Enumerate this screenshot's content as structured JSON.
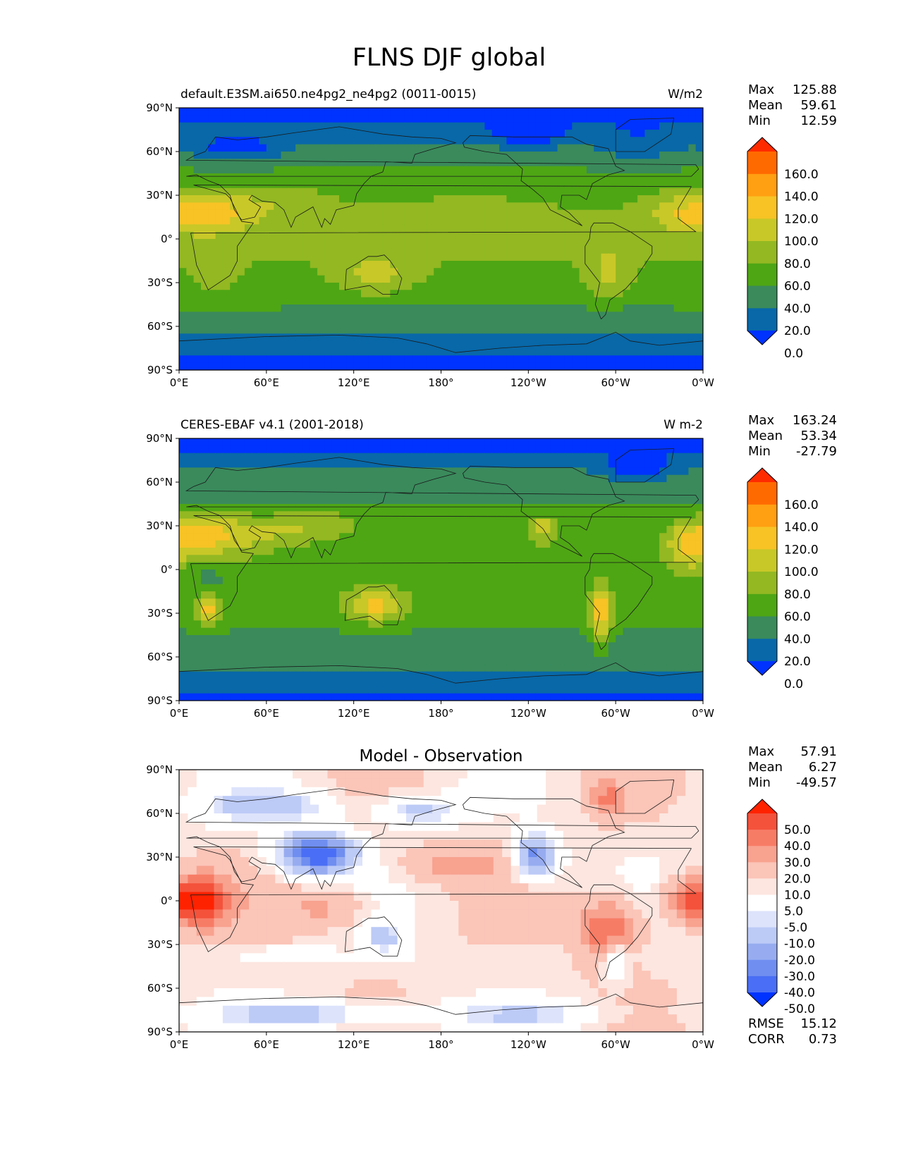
{
  "figure_title": "FLNS DJF global",
  "chart_data": [
    {
      "type": "heatmap",
      "title": "default.E3SM.ai650.ne4pg2_ne4pg2 (0011-0015)",
      "units": "W/m2",
      "stats": {
        "max": "125.88",
        "mean": "59.61",
        "min": "12.59"
      },
      "x_ticks": [
        "0°E",
        "60°E",
        "120°E",
        "180°",
        "120°W",
        "60°W",
        "0°W"
      ],
      "y_ticks": [
        "90°N",
        "60°N",
        "30°N",
        "0°",
        "30°S",
        "60°S",
        "90°S"
      ],
      "xlim": [
        0,
        360
      ],
      "ylim": [
        -90,
        90
      ],
      "colorbar_labels": [
        "160.0",
        "140.0",
        "120.0",
        "100.0",
        "80.0",
        "60.0",
        "40.0",
        "20.0",
        "0.0"
      ],
      "colorbar_colors": [
        "#ff2b00",
        "#ff6a00",
        "#ff9f12",
        "#f7c325",
        "#c8c828",
        "#93b822",
        "#4ea614",
        "#3a8a5c",
        "#0868a8",
        "#0033ff"
      ]
    },
    {
      "type": "heatmap",
      "title": "CERES-EBAF v4.1 (2001-2018)",
      "units": "W m-2",
      "stats": {
        "max": "163.24",
        "mean": "53.34",
        "min": "-27.79"
      },
      "x_ticks": [
        "0°E",
        "60°E",
        "120°E",
        "180°",
        "120°W",
        "60°W",
        "0°W"
      ],
      "y_ticks": [
        "90°N",
        "60°N",
        "30°N",
        "0°",
        "30°S",
        "60°S",
        "90°S"
      ],
      "xlim": [
        0,
        360
      ],
      "ylim": [
        -90,
        90
      ],
      "colorbar_labels": [
        "160.0",
        "140.0",
        "120.0",
        "100.0",
        "80.0",
        "60.0",
        "40.0",
        "20.0",
        "0.0"
      ],
      "colorbar_colors": [
        "#ff2b00",
        "#ff6a00",
        "#ff9f12",
        "#f7c325",
        "#c8c828",
        "#93b822",
        "#4ea614",
        "#3a8a5c",
        "#0868a8",
        "#0033ff"
      ]
    },
    {
      "type": "heatmap",
      "title": "Model - Observation",
      "units": "",
      "stats": {
        "max": "57.91",
        "mean": "6.27",
        "min": "-49.57"
      },
      "x_ticks": [
        "0°E",
        "60°E",
        "120°E",
        "180°",
        "120°W",
        "60°W",
        "0°W"
      ],
      "y_ticks": [
        "90°N",
        "60°N",
        "30°N",
        "0°",
        "30°S",
        "60°S",
        "90°S"
      ],
      "xlim": [
        0,
        360
      ],
      "ylim": [
        -90,
        90
      ],
      "colorbar_labels": [
        "50.0",
        "40.0",
        "30.0",
        "20.0",
        "10.0",
        "5.0",
        "-5.0",
        "-10.0",
        "-20.0",
        "-30.0",
        "-40.0",
        "-50.0"
      ],
      "colorbar_colors": [
        "#ff2200",
        "#f4523b",
        "#f77c66",
        "#f8a290",
        "#fbc5b8",
        "#fde6e0",
        "#ffffff",
        "#dde3fb",
        "#bccaf6",
        "#97acf0",
        "#6f8ef0",
        "#4a6ef5",
        "#0033ff"
      ],
      "rmse": "15.12",
      "corr": "0.73"
    }
  ]
}
